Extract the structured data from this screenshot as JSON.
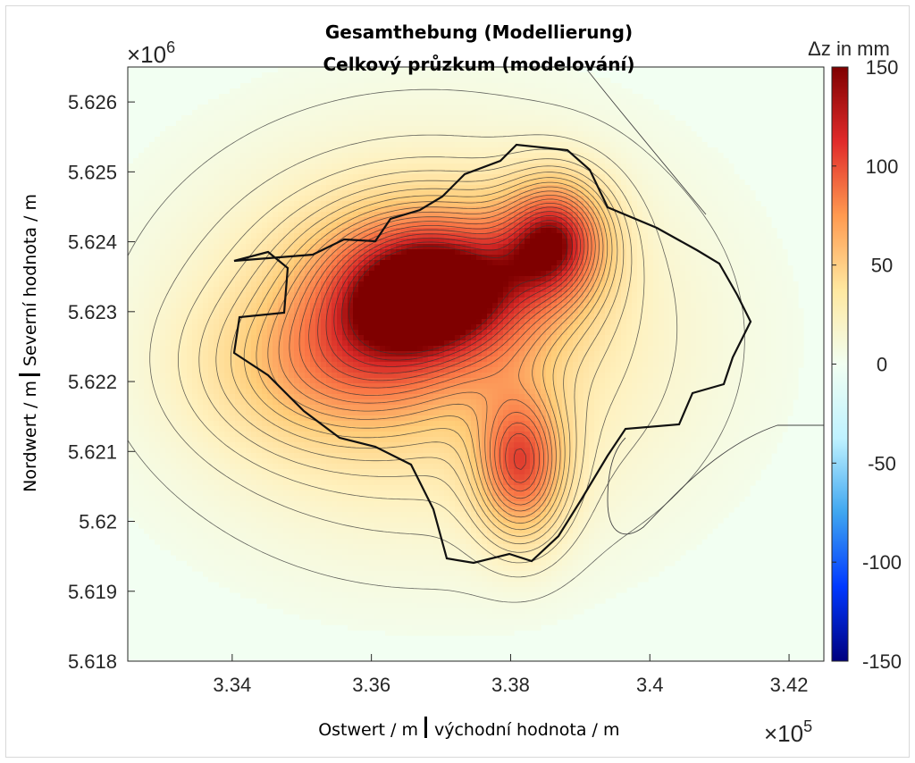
{
  "chart_data": {
    "type": "contour",
    "title": "Gesamthebung (Modellierung)",
    "subtitle": "Celkový průzkum (modelování)",
    "xlabel_de": "Ostwert / m",
    "xlabel_cs": "východní hodnota / m",
    "ylabel_de": "Nordwert / m",
    "ylabel_cs": "Severní hodnota / m",
    "x_exponent": "×10^5",
    "y_exponent": "×10^6",
    "x_exponent_base": "×10",
    "x_exponent_power": "5",
    "y_exponent_base": "×10",
    "y_exponent_power": "6",
    "xlim": [
      3.325,
      3.425
    ],
    "ylim": [
      5.618,
      5.6265
    ],
    "x_ticks": [
      3.34,
      3.36,
      3.38,
      3.4,
      3.42
    ],
    "x_tick_labels": [
      "3.34",
      "3.36",
      "3.38",
      "3.4",
      "3.42"
    ],
    "y_ticks": [
      5.618,
      5.619,
      5.62,
      5.621,
      5.622,
      5.623,
      5.624,
      5.625,
      5.626
    ],
    "y_tick_labels": [
      "5.618",
      "5.619",
      "5.62",
      "5.621",
      "5.622",
      "5.623",
      "5.624",
      "5.625",
      "5.626"
    ],
    "colorbar": {
      "label": "Δz in mm",
      "range": [
        -150,
        150
      ],
      "ticks": [
        150,
        100,
        50,
        0,
        -50,
        -100,
        -150
      ],
      "tick_labels": [
        "150",
        "100",
        "50",
        "0",
        "-50",
        "-100",
        "-150"
      ],
      "colors": [
        "#00007f",
        "#0038ff",
        "#3fa6f0",
        "#bff2ff",
        "#f2fff2",
        "#ffe8a0",
        "#ff9a50",
        "#e02a2a",
        "#7f0000"
      ]
    },
    "grid": false,
    "peaks": [
      {
        "x": 3.3685,
        "y": 5.62335,
        "dz": 145
      },
      {
        "x": 3.3865,
        "y": 5.62405,
        "dz": 105
      },
      {
        "x": 3.3815,
        "y": 5.6208,
        "dz": 95
      },
      {
        "x": 3.3555,
        "y": 5.6222,
        "dz": 55
      }
    ]
  }
}
